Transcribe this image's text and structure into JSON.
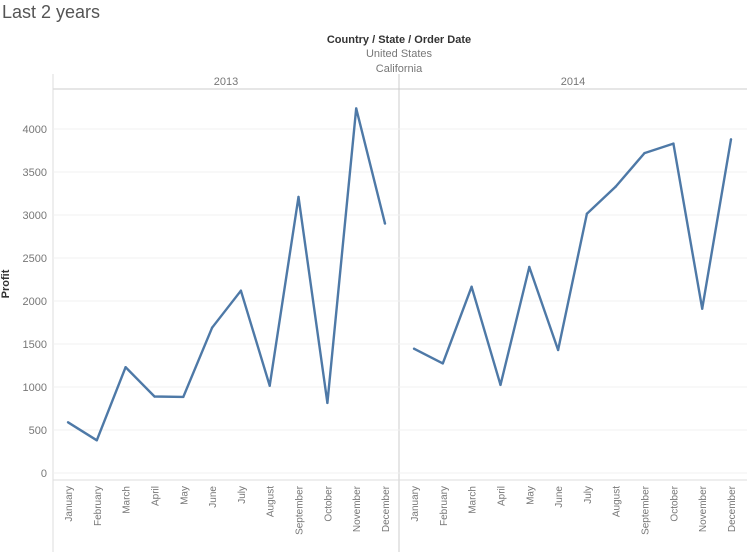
{
  "sheet": {
    "title": "Last 2 years"
  },
  "headers": {
    "dimension_label": "Country / State / Order Date",
    "country": "United States",
    "state": "California"
  },
  "chart_data": {
    "type": "line",
    "ylabel": "Profit",
    "ylim": [
      0,
      4300
    ],
    "yticks": [
      0,
      500,
      1000,
      1500,
      2000,
      2500,
      3000,
      3500,
      4000
    ],
    "categories": [
      "January",
      "February",
      "March",
      "April",
      "May",
      "June",
      "July",
      "August",
      "September",
      "October",
      "November",
      "December"
    ],
    "panels": [
      {
        "year": "2013",
        "values": [
          590,
          380,
          1230,
          890,
          885,
          1690,
          2120,
          1015,
          3210,
          815,
          4240,
          2900
        ]
      },
      {
        "year": "2014",
        "values": [
          1445,
          1275,
          2165,
          1025,
          2395,
          1430,
          3015,
          3330,
          3720,
          3830,
          1910,
          3880
        ]
      }
    ],
    "line_color": "#4e79a7",
    "grid": true
  }
}
